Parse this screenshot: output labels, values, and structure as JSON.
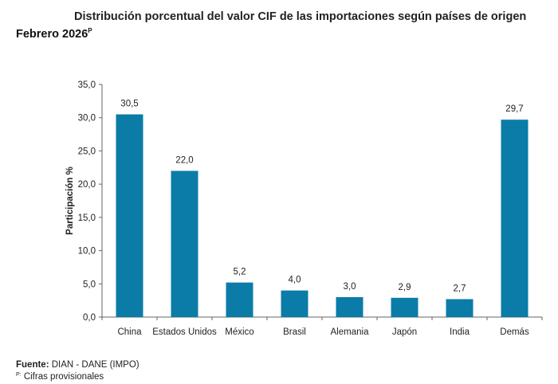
{
  "chart_data": {
    "type": "bar",
    "title": "Distribución porcentual del valor CIF de las importaciones según países de origen",
    "subtitle": "Febrero 2026",
    "subtitle_sup": "P",
    "ylabel": "Participación %",
    "xlabel": "",
    "categories": [
      "China",
      "Estados Unidos",
      "México",
      "Brasil",
      "Alemania",
      "Japón",
      "India",
      "Demás"
    ],
    "values": [
      30.5,
      22.0,
      5.2,
      4.0,
      3.0,
      2.9,
      2.7,
      29.7
    ],
    "data_labels": [
      "30,5",
      "22,0",
      "5,2",
      "4,0",
      "3,0",
      "2,9",
      "2,7",
      "29,7"
    ],
    "ylim": [
      0,
      35
    ],
    "yticks": [
      "0,0",
      "5,0",
      "10,0",
      "15,0",
      "20,0",
      "25,0",
      "30,0",
      "35,0"
    ],
    "grid": false,
    "bar_color": "#0b7ca8"
  },
  "footer": {
    "source_label": "Fuente:",
    "source_text": " DIAN - DANE (IMPO)",
    "note_mark": "P:",
    "note_text": " Cifras provisionales"
  }
}
